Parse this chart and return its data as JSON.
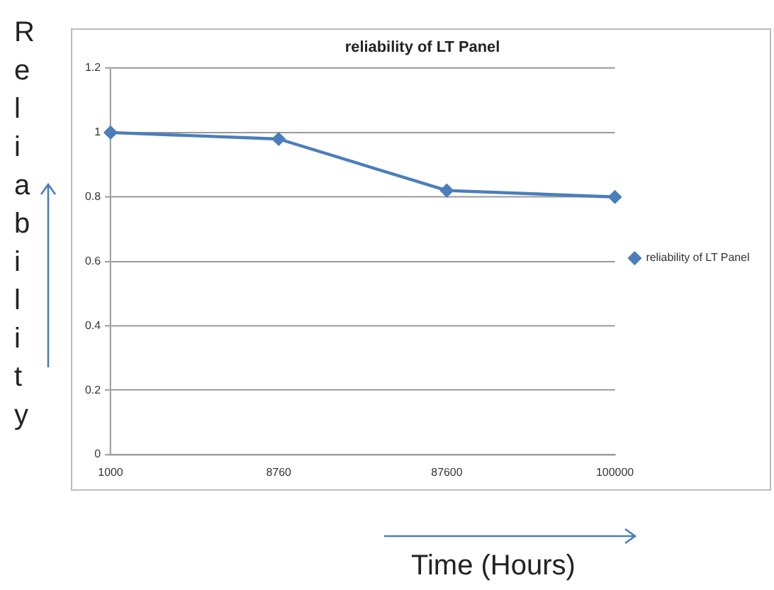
{
  "chart_data": {
    "type": "line",
    "title": "reliability of LT Panel",
    "xlabel": "Time (Hours)",
    "ylabel": "Reliability",
    "categories": [
      "1000",
      "8760",
      "87600",
      "100000"
    ],
    "series": [
      {
        "name": "reliability of LT Panel",
        "color": "#4a7ebb",
        "values": [
          1.0,
          0.98,
          0.82,
          0.8
        ]
      }
    ],
    "ylim": [
      0,
      1.2
    ],
    "yticks": [
      0,
      0.2,
      0.4,
      0.6,
      0.8,
      1,
      1.2
    ],
    "grid": "y",
    "legend": "right",
    "marker": "diamond"
  }
}
